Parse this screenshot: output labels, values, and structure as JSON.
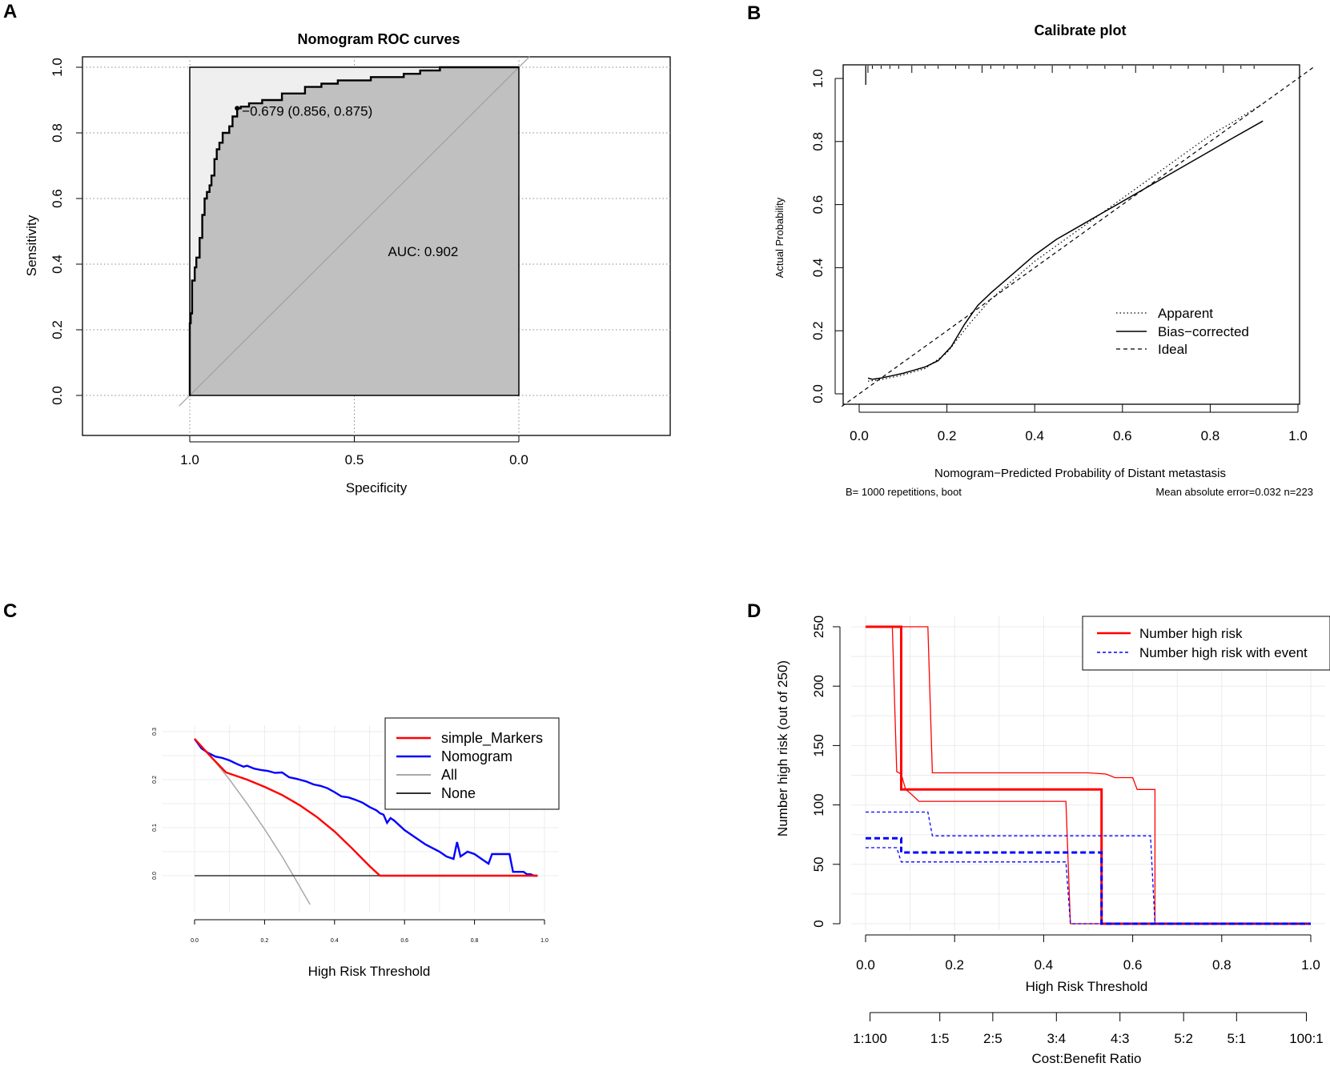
{
  "chart_data": [
    {
      "panel": "A",
      "type": "line",
      "title": "Nomogram ROC curves",
      "xlabel": "Specificity",
      "ylabel": "Sensitivity",
      "xlim": [
        1.0,
        0.0
      ],
      "ylim": [
        0.0,
        1.0
      ],
      "xticks": [
        "1.0",
        "0.5",
        "0.0"
      ],
      "yticks": [
        "0.0",
        "0.2",
        "0.4",
        "0.6",
        "0.8",
        "1.0"
      ],
      "grid": "dotted",
      "annotation": "0.679 (0.856, 0.875)",
      "auc_label": "AUC: 0.902",
      "series": [
        {
          "name": "ROC",
          "x": [
            1.0,
            1.0,
            0.997,
            0.997,
            0.993,
            0.993,
            0.985,
            0.985,
            0.98,
            0.98,
            0.97,
            0.97,
            0.962,
            0.962,
            0.955,
            0.955,
            0.948,
            0.948,
            0.94,
            0.94,
            0.934,
            0.934,
            0.925,
            0.925,
            0.918,
            0.918,
            0.91,
            0.91,
            0.9,
            0.9,
            0.88,
            0.88,
            0.87,
            0.87,
            0.856,
            0.856,
            0.845,
            0.845,
            0.82,
            0.82,
            0.78,
            0.78,
            0.72,
            0.72,
            0.65,
            0.65,
            0.6,
            0.6,
            0.55,
            0.55,
            0.45,
            0.45,
            0.35,
            0.35,
            0.3,
            0.3,
            0.25,
            0.25,
            0.24,
            0.24,
            0.0
          ],
          "y": [
            0.0,
            0.22,
            0.22,
            0.25,
            0.25,
            0.35,
            0.35,
            0.39,
            0.39,
            0.42,
            0.42,
            0.48,
            0.48,
            0.55,
            0.55,
            0.6,
            0.6,
            0.62,
            0.62,
            0.64,
            0.64,
            0.67,
            0.67,
            0.72,
            0.72,
            0.75,
            0.75,
            0.77,
            0.77,
            0.8,
            0.8,
            0.82,
            0.82,
            0.85,
            0.85,
            0.875,
            0.875,
            0.88,
            0.88,
            0.89,
            0.89,
            0.9,
            0.9,
            0.92,
            0.92,
            0.94,
            0.94,
            0.95,
            0.95,
            0.96,
            0.96,
            0.97,
            0.97,
            0.98,
            0.98,
            0.99,
            0.99,
            0.99,
            0.99,
            1.0,
            1.0
          ]
        }
      ]
    },
    {
      "panel": "B",
      "type": "line",
      "title": "Calibrate plot",
      "xlabel": "Nomogram−Predicted Probability of Distant metastasis",
      "ylabel": "Actual Probability",
      "xlim": [
        -0.04,
        1.04
      ],
      "ylim": [
        -0.03,
        1.06
      ],
      "xticks": [
        "0.0",
        "0.2",
        "0.4",
        "0.6",
        "0.8",
        "1.0"
      ],
      "yticks": [
        "0.0",
        "0.2",
        "0.4",
        "0.6",
        "0.8",
        "1.0"
      ],
      "footnote_left": "B= 1000 repetitions, boot",
      "footnote_right": "Mean absolute error=0.032 n=223",
      "legend": [
        "Apparent",
        "Bias−corrected",
        "Ideal"
      ],
      "series": [
        {
          "name": "Apparent",
          "style": "dotted",
          "x": [
            0.02,
            0.05,
            0.1,
            0.15,
            0.2,
            0.25,
            0.3,
            0.35,
            0.4,
            0.45,
            0.5,
            0.55,
            0.6,
            0.65,
            0.7,
            0.75,
            0.8,
            0.85,
            0.92
          ],
          "y": [
            0.04,
            0.045,
            0.06,
            0.08,
            0.13,
            0.22,
            0.3,
            0.36,
            0.42,
            0.47,
            0.52,
            0.57,
            0.62,
            0.67,
            0.72,
            0.77,
            0.82,
            0.86,
            0.92
          ]
        },
        {
          "name": "Bias−corrected",
          "style": "solid",
          "x": [
            0.02,
            0.03,
            0.05,
            0.1,
            0.15,
            0.18,
            0.21,
            0.24,
            0.27,
            0.3,
            0.35,
            0.4,
            0.45,
            0.5,
            0.55,
            0.6,
            0.65,
            0.7,
            0.75,
            0.8,
            0.85,
            0.92
          ],
          "y": [
            0.05,
            0.046,
            0.05,
            0.065,
            0.085,
            0.105,
            0.15,
            0.22,
            0.28,
            0.32,
            0.38,
            0.44,
            0.49,
            0.53,
            0.57,
            0.61,
            0.65,
            0.69,
            0.73,
            0.77,
            0.81,
            0.865
          ]
        },
        {
          "name": "Ideal",
          "style": "dashed",
          "x": [
            -0.04,
            1.04
          ],
          "y": [
            -0.04,
            1.04
          ]
        }
      ],
      "rug_x": [
        0.02,
        0.03,
        0.05,
        0.07,
        0.09,
        0.12,
        0.15,
        0.18,
        0.22,
        0.25,
        0.28,
        0.3,
        0.33,
        0.36,
        0.4,
        0.44,
        0.48,
        0.52,
        0.56,
        0.6,
        0.63,
        0.67,
        0.71,
        0.75,
        0.79,
        0.83,
        0.87,
        0.9
      ]
    },
    {
      "panel": "C",
      "type": "line",
      "xlabel": "High Risk Threshold",
      "ylabel": "",
      "xlim": [
        0.0,
        1.0
      ],
      "ylim": [
        -0.06,
        0.3
      ],
      "xticks": [
        "0.0",
        "0.2",
        "0.4",
        "0.6",
        "0.8",
        "1.0"
      ],
      "yticks": [
        "0.0",
        "0.1",
        "0.2",
        "0.3"
      ],
      "legend": [
        "simple_Markers",
        "Nomogram",
        "All",
        "None"
      ],
      "series": [
        {
          "name": "simple_Markers",
          "color": "#ff0000",
          "x": [
            0.0,
            0.05,
            0.09,
            0.15,
            0.2,
            0.25,
            0.3,
            0.35,
            0.4,
            0.45,
            0.5,
            0.53,
            0.6,
            0.7,
            0.8,
            0.9,
            0.98
          ],
          "y": [
            0.285,
            0.245,
            0.215,
            0.2,
            0.185,
            0.168,
            0.147,
            0.122,
            0.092,
            0.057,
            0.02,
            0.0,
            0.0,
            0.0,
            0.0,
            0.0,
            0.0
          ]
        },
        {
          "name": "Nomogram",
          "color": "#0000ff",
          "x": [
            0.0,
            0.02,
            0.04,
            0.06,
            0.08,
            0.1,
            0.12,
            0.14,
            0.15,
            0.17,
            0.19,
            0.21,
            0.23,
            0.25,
            0.27,
            0.29,
            0.3,
            0.32,
            0.34,
            0.36,
            0.38,
            0.4,
            0.42,
            0.44,
            0.46,
            0.48,
            0.5,
            0.52,
            0.53,
            0.54,
            0.55,
            0.56,
            0.57,
            0.6,
            0.63,
            0.66,
            0.7,
            0.72,
            0.74,
            0.75,
            0.76,
            0.78,
            0.8,
            0.82,
            0.84,
            0.85,
            0.86,
            0.88,
            0.9,
            0.91,
            0.92,
            0.94,
            0.95,
            0.96,
            0.97,
            0.98
          ],
          "y": [
            0.285,
            0.265,
            0.255,
            0.248,
            0.245,
            0.24,
            0.233,
            0.227,
            0.229,
            0.223,
            0.22,
            0.218,
            0.214,
            0.215,
            0.205,
            0.202,
            0.2,
            0.196,
            0.19,
            0.187,
            0.182,
            0.174,
            0.165,
            0.163,
            0.158,
            0.152,
            0.143,
            0.136,
            0.13,
            0.127,
            0.11,
            0.12,
            0.115,
            0.095,
            0.08,
            0.065,
            0.05,
            0.04,
            0.035,
            0.07,
            0.04,
            0.05,
            0.045,
            0.035,
            0.025,
            0.045,
            0.045,
            0.045,
            0.045,
            0.008,
            0.008,
            0.008,
            0.003,
            0.003,
            0.0,
            0.0
          ]
        },
        {
          "name": "All",
          "color": "#a8a8a8",
          "x": [
            0.0,
            0.05,
            0.1,
            0.15,
            0.2,
            0.25,
            0.28,
            0.3,
            0.33
          ],
          "y": [
            0.285,
            0.245,
            0.2,
            0.15,
            0.097,
            0.04,
            0.003,
            -0.022,
            -0.06
          ]
        },
        {
          "name": "None",
          "color": "#333333",
          "x": [
            0.0,
            0.98
          ],
          "y": [
            0.0,
            0.0
          ]
        }
      ]
    },
    {
      "panel": "D",
      "type": "line",
      "xlabel": "High Risk Threshold",
      "ylabel": "Number high risk (out of 250)",
      "xlim": [
        -0.03,
        1.03
      ],
      "ylim": [
        -10,
        255
      ],
      "xticks": [
        "0.0",
        "0.2",
        "0.4",
        "0.6",
        "0.8",
        "1.0"
      ],
      "yticks": [
        "0",
        "50",
        "100",
        "150",
        "200",
        "250"
      ],
      "cost_benefit_label": "Cost:Benefit Ratio",
      "cost_benefit_ticks": [
        {
          "x": 0.01,
          "label": "1:100"
        },
        {
          "x": 0.1667,
          "label": "1:5"
        },
        {
          "x": 0.2857,
          "label": "2:5"
        },
        {
          "x": 0.4286,
          "label": "3:4"
        },
        {
          "x": 0.5714,
          "label": "4:3"
        },
        {
          "x": 0.7143,
          "label": "5:2"
        },
        {
          "x": 0.8333,
          "label": "5:1"
        },
        {
          "x": 0.9901,
          "label": "100:1"
        }
      ],
      "legend": [
        "Number high risk",
        "Number high risk with event"
      ],
      "series": [
        {
          "name": "Number high risk",
          "role": "main",
          "x": [
            0.0,
            0.08,
            0.08,
            0.53,
            0.53,
            1.0
          ],
          "y": [
            250,
            250,
            113,
            113,
            0,
            0
          ]
        },
        {
          "name": "Number high risk (upper)",
          "role": "band",
          "x": [
            0.0,
            0.14,
            0.15,
            0.48,
            0.5,
            0.54,
            0.56,
            0.6,
            0.61,
            0.64,
            0.65,
            0.65,
            1.0
          ],
          "y": [
            250,
            250,
            127,
            127,
            127,
            126,
            123,
            123,
            113,
            113,
            113,
            0,
            0
          ]
        },
        {
          "name": "Number high risk (lower)",
          "role": "band",
          "x": [
            0.0,
            0.06,
            0.07,
            0.08,
            0.09,
            0.1,
            0.12,
            0.45,
            0.46,
            1.0
          ],
          "y": [
            250,
            250,
            128,
            126,
            113,
            110,
            103,
            103,
            0,
            0
          ]
        },
        {
          "name": "Number high risk with event",
          "role": "main",
          "x": [
            0.0,
            0.08,
            0.08,
            0.53,
            0.53,
            1.0
          ],
          "y": [
            72,
            72,
            60,
            60,
            0,
            0
          ]
        },
        {
          "name": "Number high risk with event (upper)",
          "role": "band",
          "x": [
            0.0,
            0.14,
            0.15,
            0.64,
            0.65,
            1.0
          ],
          "y": [
            94,
            94,
            74,
            74,
            0,
            0
          ]
        },
        {
          "name": "Number high risk with event (lower)",
          "role": "band",
          "x": [
            0.0,
            0.07,
            0.08,
            0.45,
            0.46,
            1.0
          ],
          "y": [
            64,
            64,
            52,
            52,
            0,
            0
          ]
        }
      ]
    }
  ]
}
